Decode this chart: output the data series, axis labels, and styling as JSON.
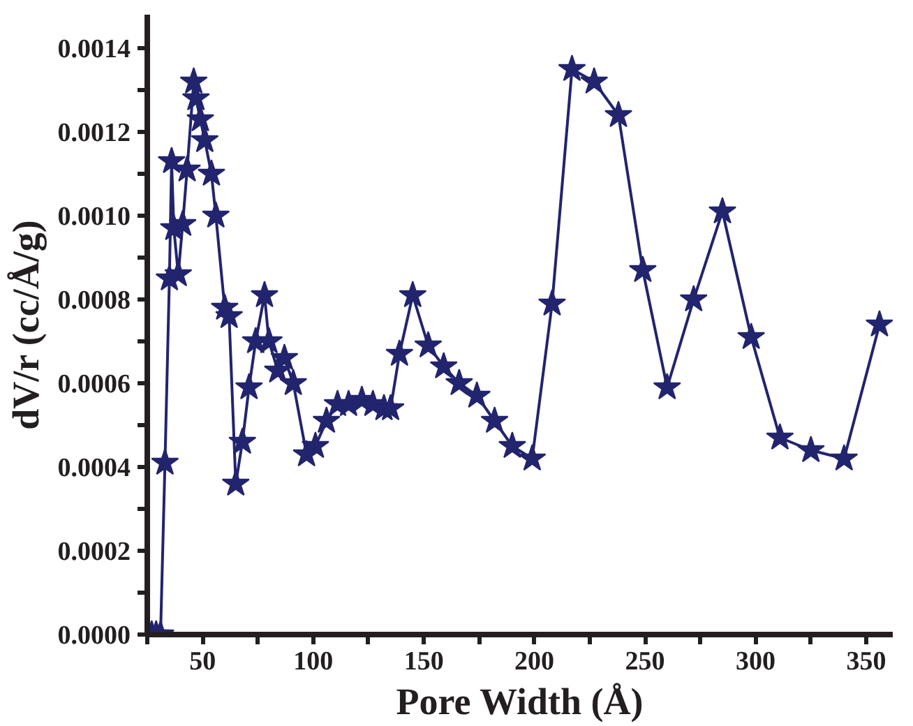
{
  "chart_data": {
    "type": "line",
    "xlabel": "Pore Width (Å)",
    "ylabel": "dV/r (cc/Å/g)",
    "marker": "star",
    "line_style": "solid",
    "xlim": [
      25,
      362
    ],
    "ylim": [
      0,
      0.00148
    ],
    "xticks": [
      {
        "value": 25,
        "label": null
      },
      50,
      {
        "value": 75,
        "label": null
      },
      100,
      {
        "value": 125,
        "label": null
      },
      150,
      {
        "value": 175,
        "label": null
      },
      200,
      {
        "value": 225,
        "label": null
      },
      250,
      {
        "value": 275,
        "label": null
      },
      300,
      {
        "value": 325,
        "label": null
      },
      350
    ],
    "yticks": [
      {
        "value": 0,
        "label": "0.0000"
      },
      {
        "value": 0.0001,
        "label": null
      },
      {
        "value": 0.0002,
        "label": "0.0002"
      },
      {
        "value": 0.0003,
        "label": null
      },
      {
        "value": 0.0004,
        "label": "0.0004"
      },
      {
        "value": 0.0005,
        "label": null
      },
      {
        "value": 0.0006,
        "label": "0.0006"
      },
      {
        "value": 0.0007,
        "label": null
      },
      {
        "value": 0.0008,
        "label": "0.0008"
      },
      {
        "value": 0.0009,
        "label": null
      },
      {
        "value": 0.001,
        "label": "0.0010"
      },
      {
        "value": 0.0011,
        "label": null
      },
      {
        "value": 0.0012,
        "label": "0.0012"
      },
      {
        "value": 0.0013,
        "label": null
      },
      {
        "value": 0.0014,
        "label": "0.0014"
      }
    ],
    "series": [
      {
        "color": "#22246e",
        "x": [
          27,
          29,
          31,
          33,
          35,
          36,
          37,
          39,
          41,
          43,
          46,
          47,
          49,
          51,
          54,
          56,
          60,
          62,
          65,
          68,
          71,
          74,
          78,
          80,
          84,
          87,
          91,
          97,
          101,
          106,
          111,
          116,
          122,
          127,
          132,
          135,
          139,
          145,
          152,
          159,
          166,
          174,
          182,
          190,
          199,
          208,
          217,
          227,
          238,
          249,
          260,
          272,
          285,
          298,
          311,
          325,
          340,
          356
        ],
        "values": [
          0,
          0,
          0,
          0.00041,
          0.00085,
          0.00113,
          0.00097,
          0.00086,
          0.00098,
          0.00111,
          0.00132,
          0.00128,
          0.00123,
          0.00118,
          0.0011,
          0.001,
          0.00078,
          0.00076,
          0.00036,
          0.00046,
          0.00059,
          0.0007,
          0.00081,
          0.0007,
          0.00063,
          0.00066,
          0.0006,
          0.00043,
          0.00045,
          0.00051,
          0.00055,
          0.00055,
          0.00056,
          0.00055,
          0.00054,
          0.00054,
          0.00067,
          0.00081,
          0.00069,
          0.00064,
          0.0006,
          0.00057,
          0.00051,
          0.00045,
          0.00042,
          0.00079,
          0.00135,
          0.00132,
          0.00124,
          0.00087,
          0.00059,
          0.0008,
          0.00101,
          0.00071,
          0.00047,
          0.00044,
          0.00042,
          0.00074
        ]
      }
    ]
  }
}
